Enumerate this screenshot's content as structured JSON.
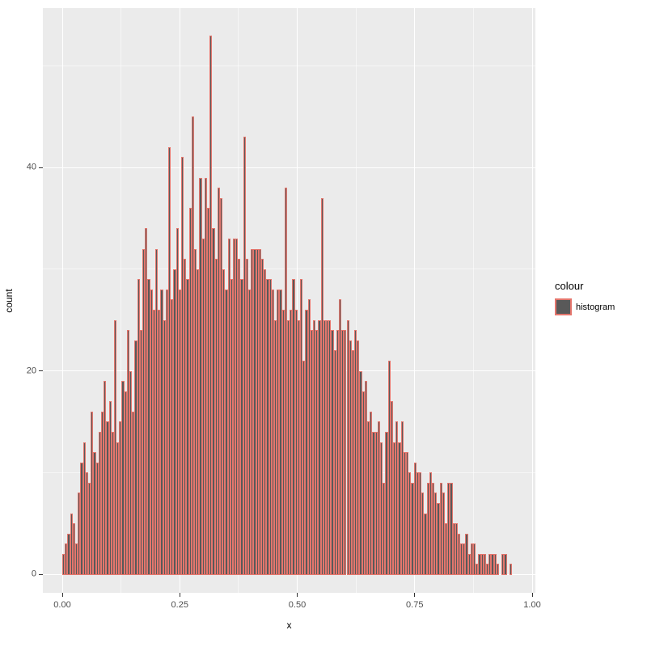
{
  "chart_data": {
    "type": "histogram",
    "title": "",
    "xlabel": "x",
    "ylabel": "count",
    "xlim": [
      -0.04,
      1.01
    ],
    "ylim": [
      -2,
      55.5
    ],
    "grid": true,
    "x_ticks": {
      "values": [
        0,
        0.25,
        0.5,
        0.75,
        1.0
      ],
      "labels": [
        "0.00",
        "0.25",
        "0.50",
        "0.75",
        "1.00"
      ]
    },
    "y_ticks": {
      "values": [
        0,
        20,
        40
      ],
      "labels": [
        "0",
        "20",
        "40"
      ]
    },
    "x_minor_ticks": [
      0.125,
      0.375,
      0.625,
      0.875
    ],
    "y_minor_ticks": [
      10,
      30,
      50
    ],
    "series": [
      {
        "name": "histogram",
        "bin_start": 0.0,
        "bin_width": 0.0055,
        "counts": [
          2,
          3,
          4,
          6,
          5,
          3,
          8,
          11,
          13,
          10,
          9,
          16,
          12,
          11,
          14,
          16,
          19,
          15,
          17,
          14,
          25,
          13,
          15,
          19,
          18,
          24,
          20,
          16,
          23,
          29,
          24,
          32,
          34,
          29,
          28,
          26,
          32,
          26,
          28,
          25,
          28,
          42,
          27,
          30,
          34,
          28,
          41,
          31,
          29,
          36,
          45,
          32,
          30,
          39,
          33,
          39,
          36,
          53,
          34,
          31,
          38,
          37,
          30,
          28,
          33,
          29,
          33,
          33,
          31,
          29,
          43,
          31,
          28,
          32,
          32,
          32,
          32,
          31,
          30,
          29,
          29,
          28,
          25,
          28,
          28,
          26,
          38,
          25,
          26,
          29,
          26,
          25,
          29,
          21,
          26,
          27,
          24,
          25,
          24,
          25,
          37,
          25,
          25,
          25,
          24,
          22,
          24,
          27,
          24,
          24,
          25,
          23,
          22,
          24,
          23,
          20,
          18,
          19,
          15,
          16,
          14,
          14,
          15,
          13,
          9,
          14,
          21,
          17,
          13,
          15,
          13,
          15,
          12,
          12,
          10,
          9,
          11,
          10,
          10,
          8,
          6,
          9,
          10,
          9,
          8,
          7,
          9,
          8,
          5,
          9,
          9,
          5,
          5,
          4,
          3,
          3,
          4,
          2,
          3,
          3,
          1,
          2,
          2,
          2,
          1,
          2,
          2,
          2,
          1,
          0,
          2,
          2,
          0,
          1
        ]
      }
    ],
    "legend": {
      "title": "colour",
      "position": "right",
      "items": [
        {
          "label": "histogram",
          "fill": "#595959",
          "stroke": "#E4766D"
        }
      ]
    },
    "colors": {
      "panel_background": "#EBEBEB",
      "gridline": "#FFFFFF",
      "bar_fill": "#595959",
      "bar_stroke": "#E4766D",
      "tick_text": "#4D4D4D",
      "axis_title_text": "#000000"
    }
  }
}
